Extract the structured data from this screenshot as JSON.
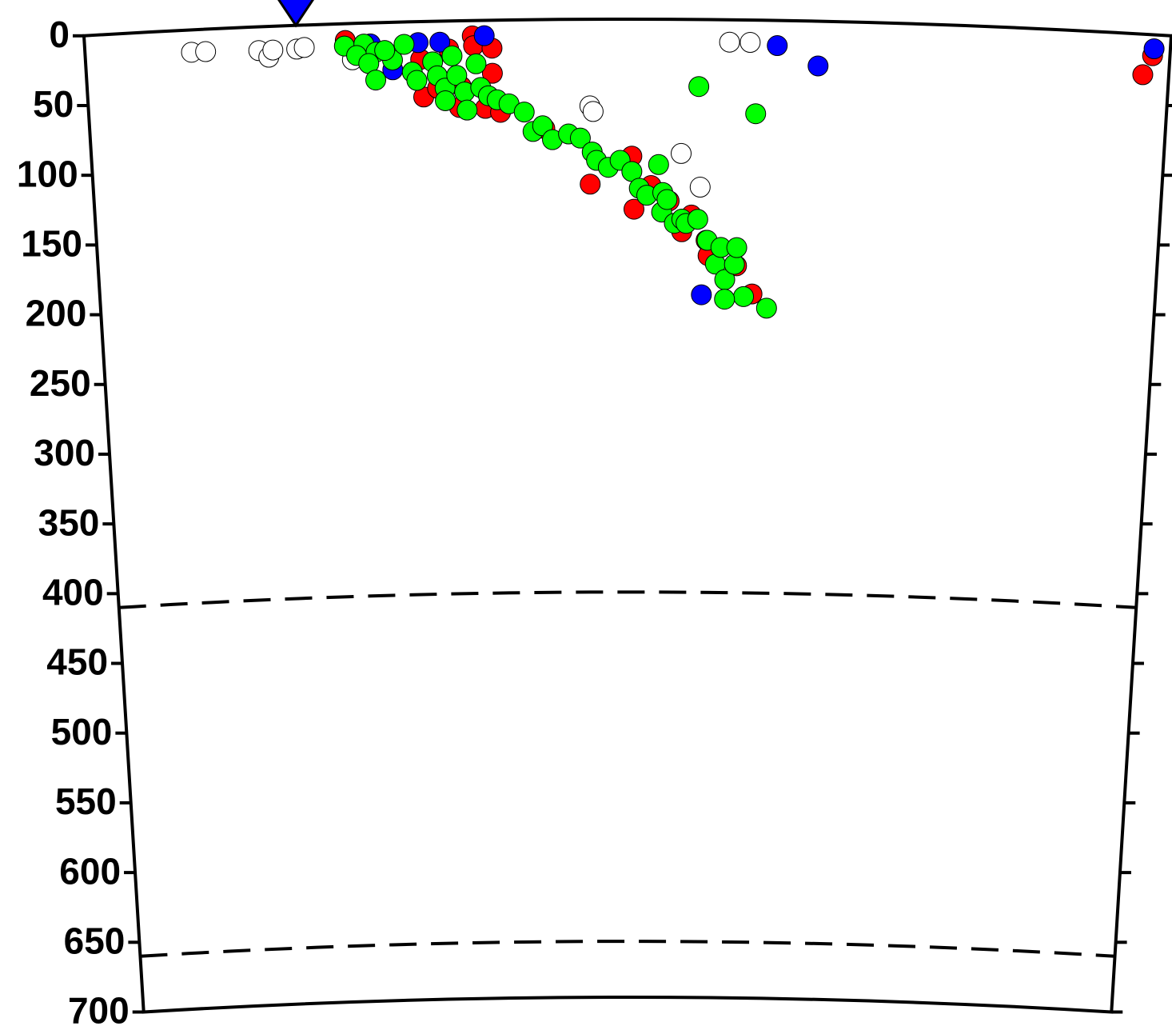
{
  "chart_data": {
    "type": "scatter",
    "xlim": [
      0,
      100
    ],
    "ylim": [
      0,
      700
    ],
    "yticks": [
      0,
      50,
      100,
      150,
      200,
      250,
      300,
      350,
      400,
      450,
      500,
      550,
      600,
      650,
      700
    ],
    "discontinuities": [
      410,
      660
    ],
    "station": {
      "x": 19.5,
      "color": "#0000ff"
    },
    "series": [
      {
        "color": "#ffffff",
        "x": [
          9.8,
          11.1,
          16.0,
          16.9,
          17.3,
          19.5,
          20.2,
          24.6,
          46.5,
          46.8,
          55.0,
          56.8,
          59.4,
          61.3
        ],
        "values": [
          16,
          16,
          17,
          22,
          17,
          17,
          16,
          26,
          62,
          66,
          96,
          120,
          16,
          16
        ]
      },
      {
        "color": "#ff0000",
        "x": [
          24.0,
          35.7,
          35.8,
          37.5,
          30.9,
          31.1,
          32.4,
          34.4,
          36.8,
          38.2,
          42.3,
          46.5,
          50.4,
          50.6,
          52.2,
          53.9,
          55.1,
          56.0,
          57.4,
          57.6,
          60.3,
          61.8,
          98.4,
          97.6,
          34.6,
          33.5,
          37.5
        ],
        "values": [
          12,
          11,
          18,
          38,
          27,
          54,
          48,
          62,
          63,
          66,
          78,
          118,
          98,
          136,
          119,
          130,
          152,
          140,
          158,
          169,
          176,
          196,
          15,
          29,
          47,
          20,
          20
        ]
      },
      {
        "color": "#0000ff",
        "x": [
          36.8,
          32.7,
          30.7,
          28.3,
          26.3,
          63.8,
          67.6,
          57.0,
          98.5
        ],
        "values": [
          11,
          15,
          15,
          34,
          15,
          18,
          32,
          197,
          10
        ]
      },
      {
        "color": "#00ff00",
        "x": [
          23.9,
          25.7,
          25.0,
          26.8,
          26.1,
          26.7,
          28.3,
          29.4,
          27.6,
          30.1,
          30.5,
          32.0,
          32.4,
          33.1,
          33.8,
          34.2,
          34.9,
          36.0,
          36.4,
          37.1,
          37.9,
          39.0,
          40.4,
          41.2,
          42.1,
          43.0,
          44.5,
          45.6,
          46.7,
          47.1,
          48.2,
          49.3,
          50.4,
          51.1,
          51.8,
          52.9,
          53.3,
          53.2,
          53.7,
          54.4,
          55.1,
          55.5,
          56.6,
          57.5,
          58.3,
          58.8,
          59.2,
          60.1,
          60.3,
          61.0,
          59.2,
          63.2,
          56.6,
          61.9,
          35.1,
          33.1
        ],
        "values": [
          16,
          15,
          23,
          21,
          29,
          41,
          27,
          16,
          20,
          36,
          42,
          29,
          39,
          48,
          25,
          39,
          51,
          31,
          48,
          54,
          57,
          60,
          66,
          80,
          76,
          86,
          82,
          85,
          95,
          101,
          106,
          101,
          109,
          121,
          126,
          104,
          124,
          138,
          129,
          146,
          143,
          146,
          143,
          158,
          175,
          163,
          186,
          175,
          163,
          198,
          200,
          206,
          48,
          67,
          64,
          57
        ]
      }
    ]
  }
}
